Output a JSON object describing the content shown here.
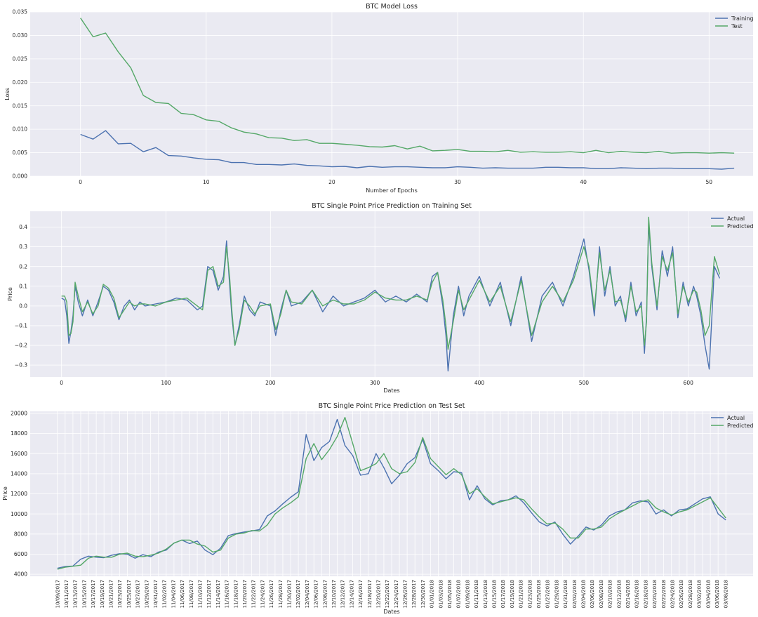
{
  "colors": {
    "blue": "#4c72b0",
    "green": "#55a868",
    "panel": "#eaeaf2"
  },
  "chart_data": [
    {
      "type": "line",
      "title": "BTC Model Loss",
      "xlabel": "Number of Epochs",
      "ylabel": "Loss",
      "xlim": [
        -4,
        53.5
      ],
      "ylim": [
        0,
        0.035
      ],
      "xticks": [
        0,
        10,
        20,
        30,
        40,
        50
      ],
      "yticks": [
        0.0,
        0.005,
        0.01,
        0.015,
        0.02,
        0.025,
        0.03,
        0.035
      ],
      "ytick_labels": [
        "0.000",
        "0.005",
        "0.010",
        "0.015",
        "0.020",
        "0.025",
        "0.030",
        "0.035"
      ],
      "legend": "top-right",
      "grid": true,
      "series": [
        {
          "name": "Training",
          "color": "#4c72b0",
          "values": [
            0.0089,
            0.0079,
            0.0097,
            0.0069,
            0.007,
            0.0052,
            0.0061,
            0.0044,
            0.0043,
            0.0039,
            0.0036,
            0.0035,
            0.0029,
            0.0029,
            0.0025,
            0.0025,
            0.0024,
            0.0026,
            0.0023,
            0.0022,
            0.002,
            0.0021,
            0.0018,
            0.0021,
            0.0019,
            0.002,
            0.002,
            0.0019,
            0.0018,
            0.0018,
            0.002,
            0.0019,
            0.0017,
            0.0018,
            0.0017,
            0.0017,
            0.0017,
            0.0019,
            0.0019,
            0.0018,
            0.0018,
            0.0016,
            0.0016,
            0.0018,
            0.0017,
            0.0016,
            0.0017,
            0.0017,
            0.0016,
            0.0016,
            0.0016,
            0.0015,
            0.0017
          ]
        },
        {
          "name": "Test",
          "color": "#55a868",
          "values": [
            0.0337,
            0.0297,
            0.0305,
            0.0265,
            0.0231,
            0.0172,
            0.0157,
            0.0155,
            0.0134,
            0.0131,
            0.012,
            0.0117,
            0.0103,
            0.0094,
            0.009,
            0.0082,
            0.0081,
            0.0076,
            0.0078,
            0.007,
            0.007,
            0.0068,
            0.0066,
            0.0063,
            0.0062,
            0.0065,
            0.0058,
            0.0064,
            0.0054,
            0.0055,
            0.0057,
            0.0053,
            0.0053,
            0.0052,
            0.0055,
            0.0051,
            0.0052,
            0.0051,
            0.0051,
            0.0052,
            0.005,
            0.0055,
            0.005,
            0.0053,
            0.0051,
            0.005,
            0.0053,
            0.0049,
            0.005,
            0.005,
            0.0049,
            0.005,
            0.0049
          ]
        }
      ]
    },
    {
      "type": "line",
      "title": "BTC Single Point Price Prediction on Training Set",
      "xlabel": "Dates",
      "ylabel": "Price",
      "xlim": [
        -30,
        662
      ],
      "ylim": [
        -0.36,
        0.48
      ],
      "xticks": [
        0,
        100,
        200,
        300,
        400,
        500,
        600
      ],
      "yticks": [
        -0.3,
        -0.2,
        -0.1,
        0.0,
        0.1,
        0.2,
        0.3,
        0.4
      ],
      "ytick_labels": [
        "−0.3",
        "−0.2",
        "−0.1",
        "0.0",
        "0.1",
        "0.2",
        "0.3",
        "0.4"
      ],
      "legend": "top-right",
      "grid": true,
      "x": [
        0,
        3,
        5,
        7,
        9,
        11,
        13,
        16,
        20,
        25,
        30,
        35,
        40,
        45,
        50,
        55,
        60,
        65,
        70,
        75,
        80,
        90,
        100,
        110,
        120,
        130,
        135,
        140,
        145,
        150,
        155,
        158,
        161,
        163,
        166,
        170,
        175,
        180,
        185,
        190,
        200,
        205,
        210,
        215,
        220,
        230,
        240,
        250,
        260,
        270,
        280,
        290,
        300,
        310,
        320,
        330,
        340,
        350,
        355,
        360,
        365,
        368,
        370,
        375,
        380,
        385,
        390,
        400,
        410,
        420,
        430,
        440,
        450,
        460,
        470,
        480,
        490,
        500,
        505,
        510,
        515,
        520,
        525,
        530,
        535,
        540,
        545,
        550,
        555,
        558,
        560,
        562,
        565,
        570,
        575,
        580,
        585,
        590,
        595,
        600,
        605,
        608,
        612,
        616,
        620,
        625,
        630
      ],
      "series": [
        {
          "name": "Actual",
          "color": "#4c72b0",
          "values": [
            0.04,
            0.03,
            -0.05,
            -0.19,
            -0.13,
            -0.05,
            0.1,
            0.02,
            -0.05,
            0.03,
            -0.05,
            0.02,
            0.1,
            0.08,
            0.02,
            -0.07,
            0.0,
            0.03,
            -0.02,
            0.02,
            0.0,
            0.01,
            0.02,
            0.04,
            0.03,
            -0.02,
            0.0,
            0.2,
            0.18,
            0.08,
            0.15,
            0.33,
            0.1,
            -0.05,
            -0.2,
            -0.1,
            0.05,
            -0.02,
            -0.05,
            0.02,
            0.0,
            -0.15,
            -0.02,
            0.08,
            0.0,
            0.02,
            0.08,
            -0.03,
            0.05,
            0.0,
            0.02,
            0.04,
            0.08,
            0.02,
            0.05,
            0.02,
            0.06,
            0.02,
            0.15,
            0.17,
            0.0,
            -0.15,
            -0.33,
            -0.05,
            0.1,
            -0.05,
            0.05,
            0.15,
            0.0,
            0.12,
            -0.1,
            0.15,
            -0.18,
            0.05,
            0.12,
            0.0,
            0.15,
            0.34,
            0.18,
            -0.05,
            0.3,
            0.05,
            0.2,
            0.0,
            0.05,
            -0.08,
            0.12,
            -0.05,
            0.02,
            -0.24,
            -0.05,
            0.42,
            0.2,
            -0.02,
            0.28,
            0.15,
            0.3,
            -0.06,
            0.12,
            0.0,
            0.1,
            0.05,
            -0.05,
            -0.2,
            -0.32,
            0.2,
            0.14
          ]
        },
        {
          "name": "Predicted",
          "color": "#55a868",
          "values": [
            0.05,
            0.05,
            0.02,
            -0.15,
            -0.14,
            -0.08,
            0.12,
            0.05,
            -0.03,
            0.02,
            -0.04,
            0.0,
            0.11,
            0.09,
            0.04,
            -0.06,
            -0.02,
            0.02,
            0.0,
            0.01,
            0.01,
            0.0,
            0.02,
            0.03,
            0.04,
            0.0,
            -0.02,
            0.18,
            0.2,
            0.1,
            0.12,
            0.3,
            0.14,
            -0.02,
            -0.2,
            -0.12,
            0.03,
            0.0,
            -0.04,
            0.0,
            0.01,
            -0.12,
            -0.04,
            0.08,
            0.02,
            0.01,
            0.08,
            0.0,
            0.03,
            0.01,
            0.01,
            0.03,
            0.07,
            0.04,
            0.03,
            0.03,
            0.05,
            0.03,
            0.12,
            0.17,
            0.03,
            -0.1,
            -0.22,
            -0.08,
            0.08,
            -0.02,
            0.03,
            0.13,
            0.02,
            0.1,
            -0.08,
            0.13,
            -0.15,
            0.02,
            0.1,
            0.02,
            0.13,
            0.3,
            0.2,
            -0.02,
            0.27,
            0.08,
            0.18,
            0.02,
            0.03,
            -0.06,
            0.1,
            -0.03,
            0.0,
            -0.2,
            -0.08,
            0.45,
            0.22,
            0.0,
            0.25,
            0.18,
            0.27,
            -0.04,
            0.1,
            0.02,
            0.08,
            0.07,
            -0.02,
            -0.15,
            -0.1,
            0.25,
            0.16
          ]
        }
      ]
    },
    {
      "type": "line",
      "title": "BTC Single Point Price Prediction on Test Set",
      "xlabel": "Dates",
      "ylabel": "Price",
      "ylim": [
        3800,
        20200
      ],
      "yticks": [
        4000,
        6000,
        8000,
        10000,
        12000,
        14000,
        16000,
        18000,
        20000
      ],
      "ytick_labels": [
        "4000",
        "6000",
        "8000",
        "10000",
        "12000",
        "14000",
        "16000",
        "18000",
        "20000"
      ],
      "legend": "top-right",
      "grid": true,
      "date_labels": [
        "10/09/2017",
        "10/11/2017",
        "10/13/2017",
        "10/15/2017",
        "10/17/2017",
        "10/19/2017",
        "10/21/2017",
        "10/23/2017",
        "10/25/2017",
        "10/27/2017",
        "10/29/2017",
        "10/31/2017",
        "11/02/2017",
        "11/04/2017",
        "11/06/2017",
        "11/08/2017",
        "11/10/2017",
        "11/12/2017",
        "11/14/2017",
        "11/16/2017",
        "11/18/2017",
        "11/20/2017",
        "11/22/2017",
        "11/24/2017",
        "11/26/2017",
        "11/28/2017",
        "11/30/2017",
        "12/02/2017",
        "12/04/2017",
        "12/06/2017",
        "12/08/2017",
        "12/10/2017",
        "12/12/2017",
        "12/14/2017",
        "12/16/2017",
        "12/18/2017",
        "12/20/2017",
        "12/22/2017",
        "12/24/2017",
        "12/26/2017",
        "12/28/2017",
        "12/30/2017",
        "01/01/2018",
        "01/03/2018",
        "01/05/2018",
        "01/07/2018",
        "01/09/2018",
        "01/11/2018",
        "01/13/2018",
        "01/15/2018",
        "01/17/2018",
        "01/19/2018",
        "01/21/2018",
        "01/23/2018",
        "01/25/2018",
        "01/27/2018",
        "01/29/2018",
        "01/31/2018",
        "02/02/2018",
        "02/04/2018",
        "02/06/2018",
        "02/08/2018",
        "02/10/2018",
        "02/12/2018",
        "02/14/2018",
        "02/16/2018",
        "02/18/2018",
        "02/20/2018",
        "02/22/2018",
        "02/24/2018",
        "02/26/2018",
        "02/28/2018",
        "03/02/2018",
        "03/04/2018",
        "03/06/2018",
        "03/08/2018"
      ],
      "series": [
        {
          "name": "Actual",
          "color": "#4c72b0",
          "values": [
            4600,
            4770,
            4820,
            5500,
            5800,
            5700,
            5650,
            5900,
            6050,
            6000,
            5600,
            5950,
            5750,
            6200,
            6400,
            7100,
            7400,
            7050,
            7300,
            6400,
            5950,
            6600,
            7850,
            8050,
            8200,
            8300,
            8450,
            9800,
            10300,
            11000,
            11650,
            12200,
            17900,
            15300,
            16600,
            17200,
            19400,
            16800,
            15800,
            13850,
            14000,
            16000,
            14600,
            13000,
            13850,
            15000,
            15600,
            17400,
            15000,
            14300,
            13500,
            14200,
            14100,
            11400,
            12800,
            11500,
            10900,
            11300,
            11400,
            11800,
            11100,
            10100,
            9200,
            8800,
            9200,
            8000,
            7000,
            7800,
            8700,
            8400,
            8900,
            9800,
            10200,
            10400,
            11100,
            11300,
            11200,
            10000,
            10400,
            9800,
            10400,
            10500,
            11000,
            11500,
            11700,
            10000,
            9400
          ]
        },
        {
          "name": "Predicted",
          "color": "#55a868",
          "values": [
            4500,
            4700,
            4800,
            4900,
            5600,
            5800,
            5700,
            5700,
            6000,
            6100,
            5800,
            5750,
            5900,
            6100,
            6500,
            7100,
            7400,
            7400,
            7000,
            6800,
            6200,
            6400,
            7600,
            8000,
            8100,
            8350,
            8300,
            8900,
            10000,
            10600,
            11100,
            11700,
            15500,
            17000,
            15400,
            16400,
            17700,
            19600,
            17000,
            14300,
            14600,
            15000,
            16000,
            14500,
            14000,
            14200,
            15100,
            17600,
            15500,
            14700,
            13900,
            14500,
            13900,
            12000,
            12500,
            11700,
            11000,
            11200,
            11400,
            11600,
            11400,
            10500,
            9700,
            9000,
            9100,
            8500,
            7600,
            7600,
            8500,
            8500,
            8700,
            9500,
            10000,
            10400,
            10800,
            11200,
            11400,
            10600,
            10200,
            9900,
            10200,
            10400,
            10800,
            11200,
            11600,
            10600,
            9600
          ]
        }
      ]
    }
  ]
}
